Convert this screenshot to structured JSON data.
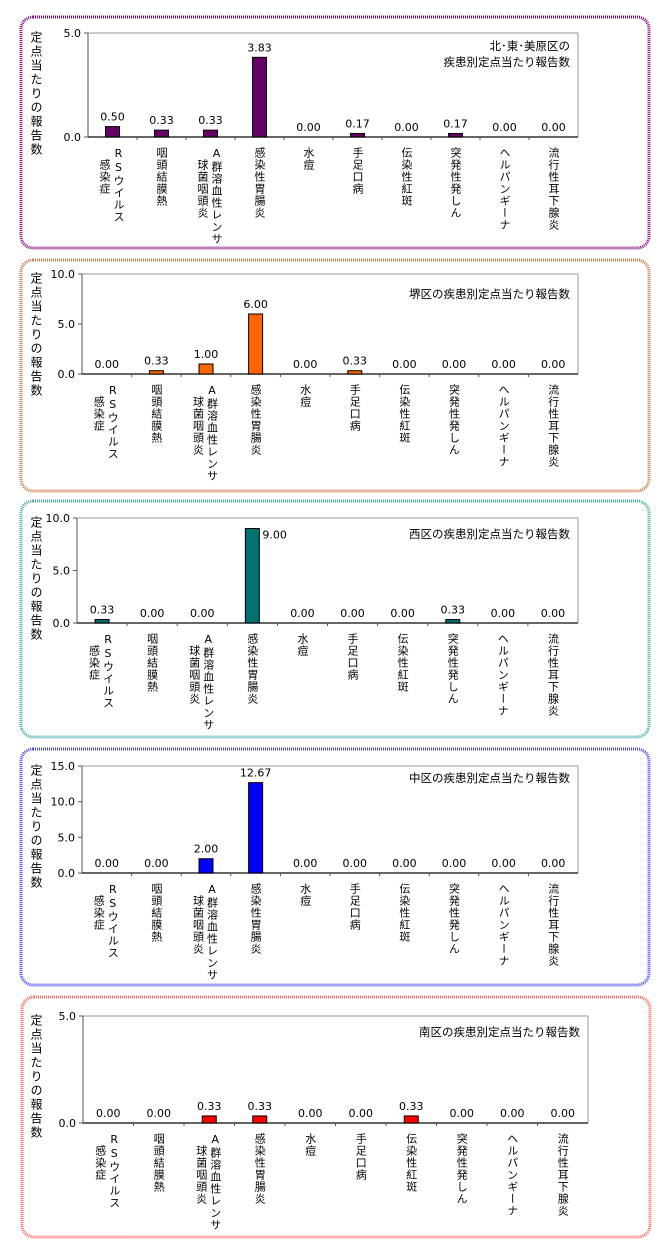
{
  "chart_data": [
    {
      "type": "bar",
      "title": [
        "北･東･美原区の",
        "疾患別定点当たり報告数"
      ],
      "ylabel": "定点当たりの報告数",
      "categories": [
        [
          "RSウイルス",
          "感染症"
        ],
        [
          "咽頭結膜熱"
        ],
        [
          "A群溶血性レンサ",
          "球菌咽頭炎"
        ],
        [
          "感染性胃腸炎"
        ],
        [
          "水痘"
        ],
        [
          "手足口病"
        ],
        [
          "伝染性紅斑"
        ],
        [
          "突発性発しん"
        ],
        [
          "ヘルパンギーナ"
        ],
        [
          "流行性耳下腺炎"
        ]
      ],
      "values": [
        0.5,
        0.33,
        0.33,
        3.83,
        0.0,
        0.17,
        0.0,
        0.17,
        0.0,
        0.0
      ],
      "ylim": [
        0,
        5
      ],
      "yticks": [
        "0.0",
        "5.0"
      ],
      "grid": false,
      "bar_color": "#660066",
      "frame_color": "#800080"
    },
    {
      "type": "bar",
      "title": [
        "堺区の疾患別定点当たり報告数"
      ],
      "ylabel": "定点当たりの報告数",
      "categories": [
        [
          "RSウイルス",
          "感染症"
        ],
        [
          "咽頭結膜熱"
        ],
        [
          "A群溶血性レンサ",
          "球菌咽頭炎"
        ],
        [
          "感染性胃腸炎"
        ],
        [
          "水痘"
        ],
        [
          "手足口病"
        ],
        [
          "伝染性紅斑"
        ],
        [
          "突発性発しん"
        ],
        [
          "ヘルパンギーナ"
        ],
        [
          "流行性耳下腺炎"
        ]
      ],
      "values": [
        0.0,
        0.33,
        1.0,
        6.0,
        0.0,
        0.33,
        0.0,
        0.0,
        0.0,
        0.0
      ],
      "ylim": [
        0,
        10
      ],
      "yticks": [
        "0.0",
        "5.0",
        "10.0"
      ],
      "grid": false,
      "bar_color": "#ff6600",
      "frame_color": "#cc7744"
    },
    {
      "type": "bar",
      "title": [
        "西区の疾患別定点当たり報告数"
      ],
      "ylabel": "定点当たりの報告数",
      "categories": [
        [
          "RSウイルス",
          "感染症"
        ],
        [
          "咽頭結膜熱"
        ],
        [
          "A群溶血性レンサ",
          "球菌咽頭炎"
        ],
        [
          "感染性胃腸炎"
        ],
        [
          "水痘"
        ],
        [
          "手足口病"
        ],
        [
          "伝染性紅斑"
        ],
        [
          "突発性発しん"
        ],
        [
          "ヘルパンギーナ"
        ],
        [
          "流行性耳下腺炎"
        ]
      ],
      "values": [
        0.33,
        0.0,
        0.0,
        9.0,
        0.0,
        0.0,
        0.0,
        0.33,
        0.0,
        0.0
      ],
      "ylim": [
        0,
        10
      ],
      "yticks": [
        "0.0",
        "5.0",
        "10.0"
      ],
      "grid": false,
      "bar_color": "#007070",
      "frame_color": "#44aaaa"
    },
    {
      "type": "bar",
      "title": [
        "中区の疾患別定点当たり報告数"
      ],
      "ylabel": "定点当たりの報告数",
      "categories": [
        [
          "RSウイルス",
          "感染症"
        ],
        [
          "咽頭結膜熱"
        ],
        [
          "A群溶血性レンサ",
          "球菌咽頭炎"
        ],
        [
          "感染性胃腸炎"
        ],
        [
          "水痘"
        ],
        [
          "手足口病"
        ],
        [
          "伝染性紅斑"
        ],
        [
          "突発性発しん"
        ],
        [
          "ヘルパンギーナ"
        ],
        [
          "流行性耳下腺炎"
        ]
      ],
      "values": [
        0.0,
        0.0,
        2.0,
        12.67,
        0.0,
        0.0,
        0.0,
        0.0,
        0.0,
        0.0
      ],
      "ylim": [
        0,
        15
      ],
      "yticks": [
        "0.0",
        "5.0",
        "10.0",
        "15.0"
      ],
      "grid": false,
      "bar_color": "#0000ff",
      "frame_color": "#4444ff"
    },
    {
      "type": "bar",
      "title": [
        "南区の疾患別定点当たり報告数"
      ],
      "ylabel": "定点当たりの報告数",
      "categories": [
        [
          "RSウイルス",
          "感染症"
        ],
        [
          "咽頭結膜熱"
        ],
        [
          "A群溶血性レンサ",
          "球菌咽頭炎"
        ],
        [
          "感染性胃腸炎"
        ],
        [
          "水痘"
        ],
        [
          "手足口病"
        ],
        [
          "伝染性紅斑"
        ],
        [
          "突発性発しん"
        ],
        [
          "ヘルパンギーナ"
        ],
        [
          "流行性耳下腺炎"
        ]
      ],
      "values": [
        0.0,
        0.0,
        0.33,
        0.33,
        0.0,
        0.0,
        0.33,
        0.0,
        0.0,
        0.0
      ],
      "ylim": [
        0,
        5
      ],
      "yticks": [
        "0.0",
        "5.0"
      ],
      "grid": false,
      "bar_color": "#ff0000",
      "frame_color": "#ff6666"
    }
  ]
}
